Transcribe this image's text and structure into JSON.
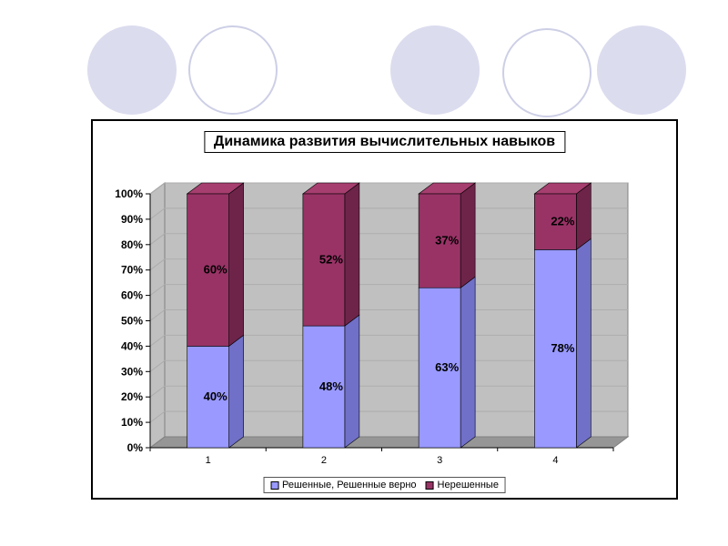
{
  "decor": {
    "circle_styles": [
      "filled",
      "outline",
      "filled",
      "outline",
      "filled"
    ]
  },
  "colors": {
    "series1_side": "#7070C8",
    "series2_side": "#6E2449",
    "series2_top": "#A63E6F",
    "wall": "#C0C0C0",
    "wall_edge": "#808080",
    "floor": "#969696",
    "gridline": "#ADADAD",
    "axis": "#000000"
  },
  "chart_data": {
    "type": "bar",
    "variant": "3d-stacked-column",
    "stacked": true,
    "title": "Динамика развития вычислительных навыков",
    "xlabel": "",
    "ylabel": "",
    "categories": [
      "1",
      "2",
      "3",
      "4"
    ],
    "series": [
      {
        "name": "Решенные, Решенные верно",
        "color": "#9999FF",
        "values": [
          40,
          48,
          63,
          78
        ],
        "labels": [
          "40%",
          "48%",
          "63%",
          "78%"
        ]
      },
      {
        "name": "Нерешенные",
        "color": "#993366",
        "values": [
          60,
          52,
          37,
          22
        ],
        "labels": [
          "60%",
          "52%",
          "37%",
          "22%"
        ]
      }
    ],
    "y_axis": {
      "min": 0,
      "max": 100,
      "tick_labels": [
        "0%",
        "10%",
        "20%",
        "30%",
        "40%",
        "50%",
        "60%",
        "70%",
        "80%",
        "90%",
        "100%"
      ]
    },
    "legend_position": "bottom",
    "plot_background": "#C0C0C0"
  }
}
